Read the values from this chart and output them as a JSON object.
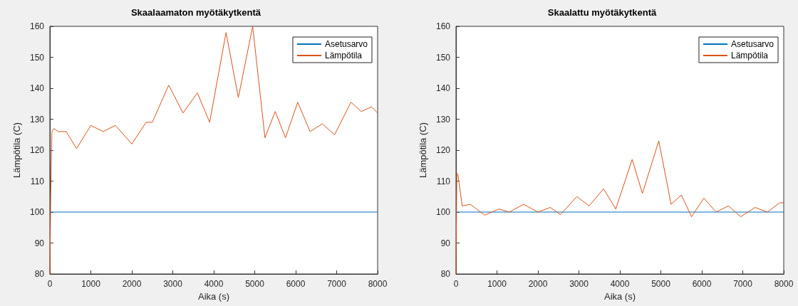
{
  "chart_data": [
    {
      "type": "line",
      "title": "Skaalaamaton myötäkytkentä",
      "xlabel": "Aika (s)",
      "ylabel": "Lämpötila (C)",
      "xlim": [
        0,
        8000
      ],
      "xticks": [
        0,
        1000,
        2000,
        3000,
        4000,
        5000,
        6000,
        7000,
        8000
      ],
      "ylim": [
        80,
        160
      ],
      "yticks": [
        80,
        90,
        100,
        110,
        120,
        130,
        140,
        150,
        160
      ],
      "legend": "top right",
      "series": [
        {
          "name": "Asetusarvo",
          "color": "#0072bd",
          "x": [
            0,
            8000
          ],
          "values": [
            100,
            100
          ]
        },
        {
          "name": "Lämpötila",
          "color": "#d95319",
          "x": [
            0,
            20,
            50,
            100,
            200,
            400,
            650,
            1000,
            1300,
            1600,
            2000,
            2350,
            2500,
            2900,
            3250,
            3600,
            3900,
            4300,
            4600,
            4950,
            5250,
            5500,
            5750,
            6050,
            6350,
            6650,
            6950,
            7350,
            7600,
            7850,
            8000
          ],
          "values": [
            80,
            105,
            126,
            127,
            126,
            126,
            120.5,
            128,
            126,
            128,
            122,
            129,
            129,
            141,
            132,
            138.5,
            129,
            158,
            137,
            160,
            124,
            132.5,
            124,
            135.5,
            126,
            128.5,
            125,
            135.5,
            132.5,
            134,
            132
          ]
        }
      ]
    },
    {
      "type": "line",
      "title": "Skaalattu myötäkytkentä",
      "xlabel": "Aika (s)",
      "ylabel": "Lämpötila (C)",
      "xlim": [
        0,
        8000
      ],
      "xticks": [
        0,
        1000,
        2000,
        3000,
        4000,
        5000,
        6000,
        7000,
        8000
      ],
      "ylim": [
        80,
        160
      ],
      "yticks": [
        80,
        90,
        100,
        110,
        120,
        130,
        140,
        150,
        160
      ],
      "legend": "top right",
      "series": [
        {
          "name": "Asetusarvo",
          "color": "#0072bd",
          "x": [
            0,
            8000
          ],
          "values": [
            100,
            100
          ]
        },
        {
          "name": "Lämpötila",
          "color": "#d95319",
          "x": [
            0,
            20,
            50,
            150,
            350,
            700,
            1050,
            1300,
            1650,
            2000,
            2300,
            2550,
            2950,
            3250,
            3600,
            3900,
            4300,
            4550,
            4950,
            5250,
            5500,
            5750,
            6050,
            6350,
            6650,
            6950,
            7300,
            7600,
            7900,
            8000
          ],
          "values": [
            80,
            112.5,
            112,
            102,
            102.5,
            99,
            101,
            100,
            102.5,
            100,
            101.5,
            99.2,
            105,
            102,
            107.5,
            101,
            117,
            106,
            123,
            102.5,
            105.5,
            98.5,
            104.5,
            100,
            102,
            98.5,
            101.5,
            100,
            103,
            103
          ]
        }
      ]
    }
  ]
}
